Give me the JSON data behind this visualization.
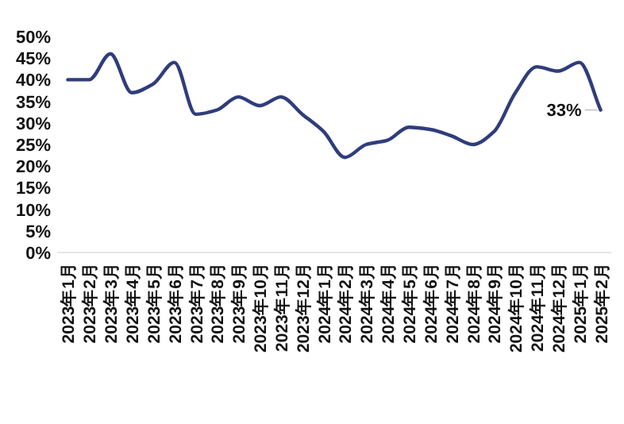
{
  "chart_data": {
    "type": "line",
    "categories": [
      "2023年1月",
      "2023年2月",
      "2023年3月",
      "2023年4月",
      "2023年5月",
      "2023年6月",
      "2023年7月",
      "2023年8月",
      "2023年9月",
      "2023年10月",
      "2023年11月",
      "2023年12月",
      "2024年1月",
      "2024年2月",
      "2024年3月",
      "2024年4月",
      "2024年5月",
      "2024年6月",
      "2024年7月",
      "2024年8月",
      "2024年9月",
      "2024年10月",
      "2024年11月",
      "2024年12月",
      "2025年1月",
      "2025年2月"
    ],
    "series": [
      {
        "color": "#2f3d7c",
        "values": [
          40,
          40,
          46,
          37,
          39,
          44,
          32,
          33,
          36,
          34,
          36,
          32,
          28,
          22,
          25,
          26,
          29,
          28.5,
          27,
          25,
          28,
          37,
          43,
          42,
          44,
          33
        ],
        "value_labels": [
          null,
          null,
          null,
          null,
          null,
          null,
          null,
          null,
          null,
          null,
          null,
          null,
          null,
          null,
          null,
          null,
          null,
          null,
          null,
          null,
          null,
          null,
          null,
          null,
          null,
          "33%"
        ]
      }
    ],
    "ylim": [
      0,
      50
    ],
    "yticks": [
      {
        "value": 0,
        "label": "0%"
      },
      {
        "value": 5,
        "label": "5%"
      },
      {
        "value": 10,
        "label": "10%"
      },
      {
        "value": 15,
        "label": "15%"
      },
      {
        "value": 20,
        "label": "20%"
      },
      {
        "value": 25,
        "label": "25%"
      },
      {
        "value": 30,
        "label": "30%"
      },
      {
        "value": 35,
        "label": "35%"
      },
      {
        "value": 40,
        "label": "40%"
      },
      {
        "value": 45,
        "label": "45%"
      },
      {
        "value": 50,
        "label": "50%"
      }
    ],
    "grid": false,
    "marker": "none",
    "line_style": "solid"
  }
}
